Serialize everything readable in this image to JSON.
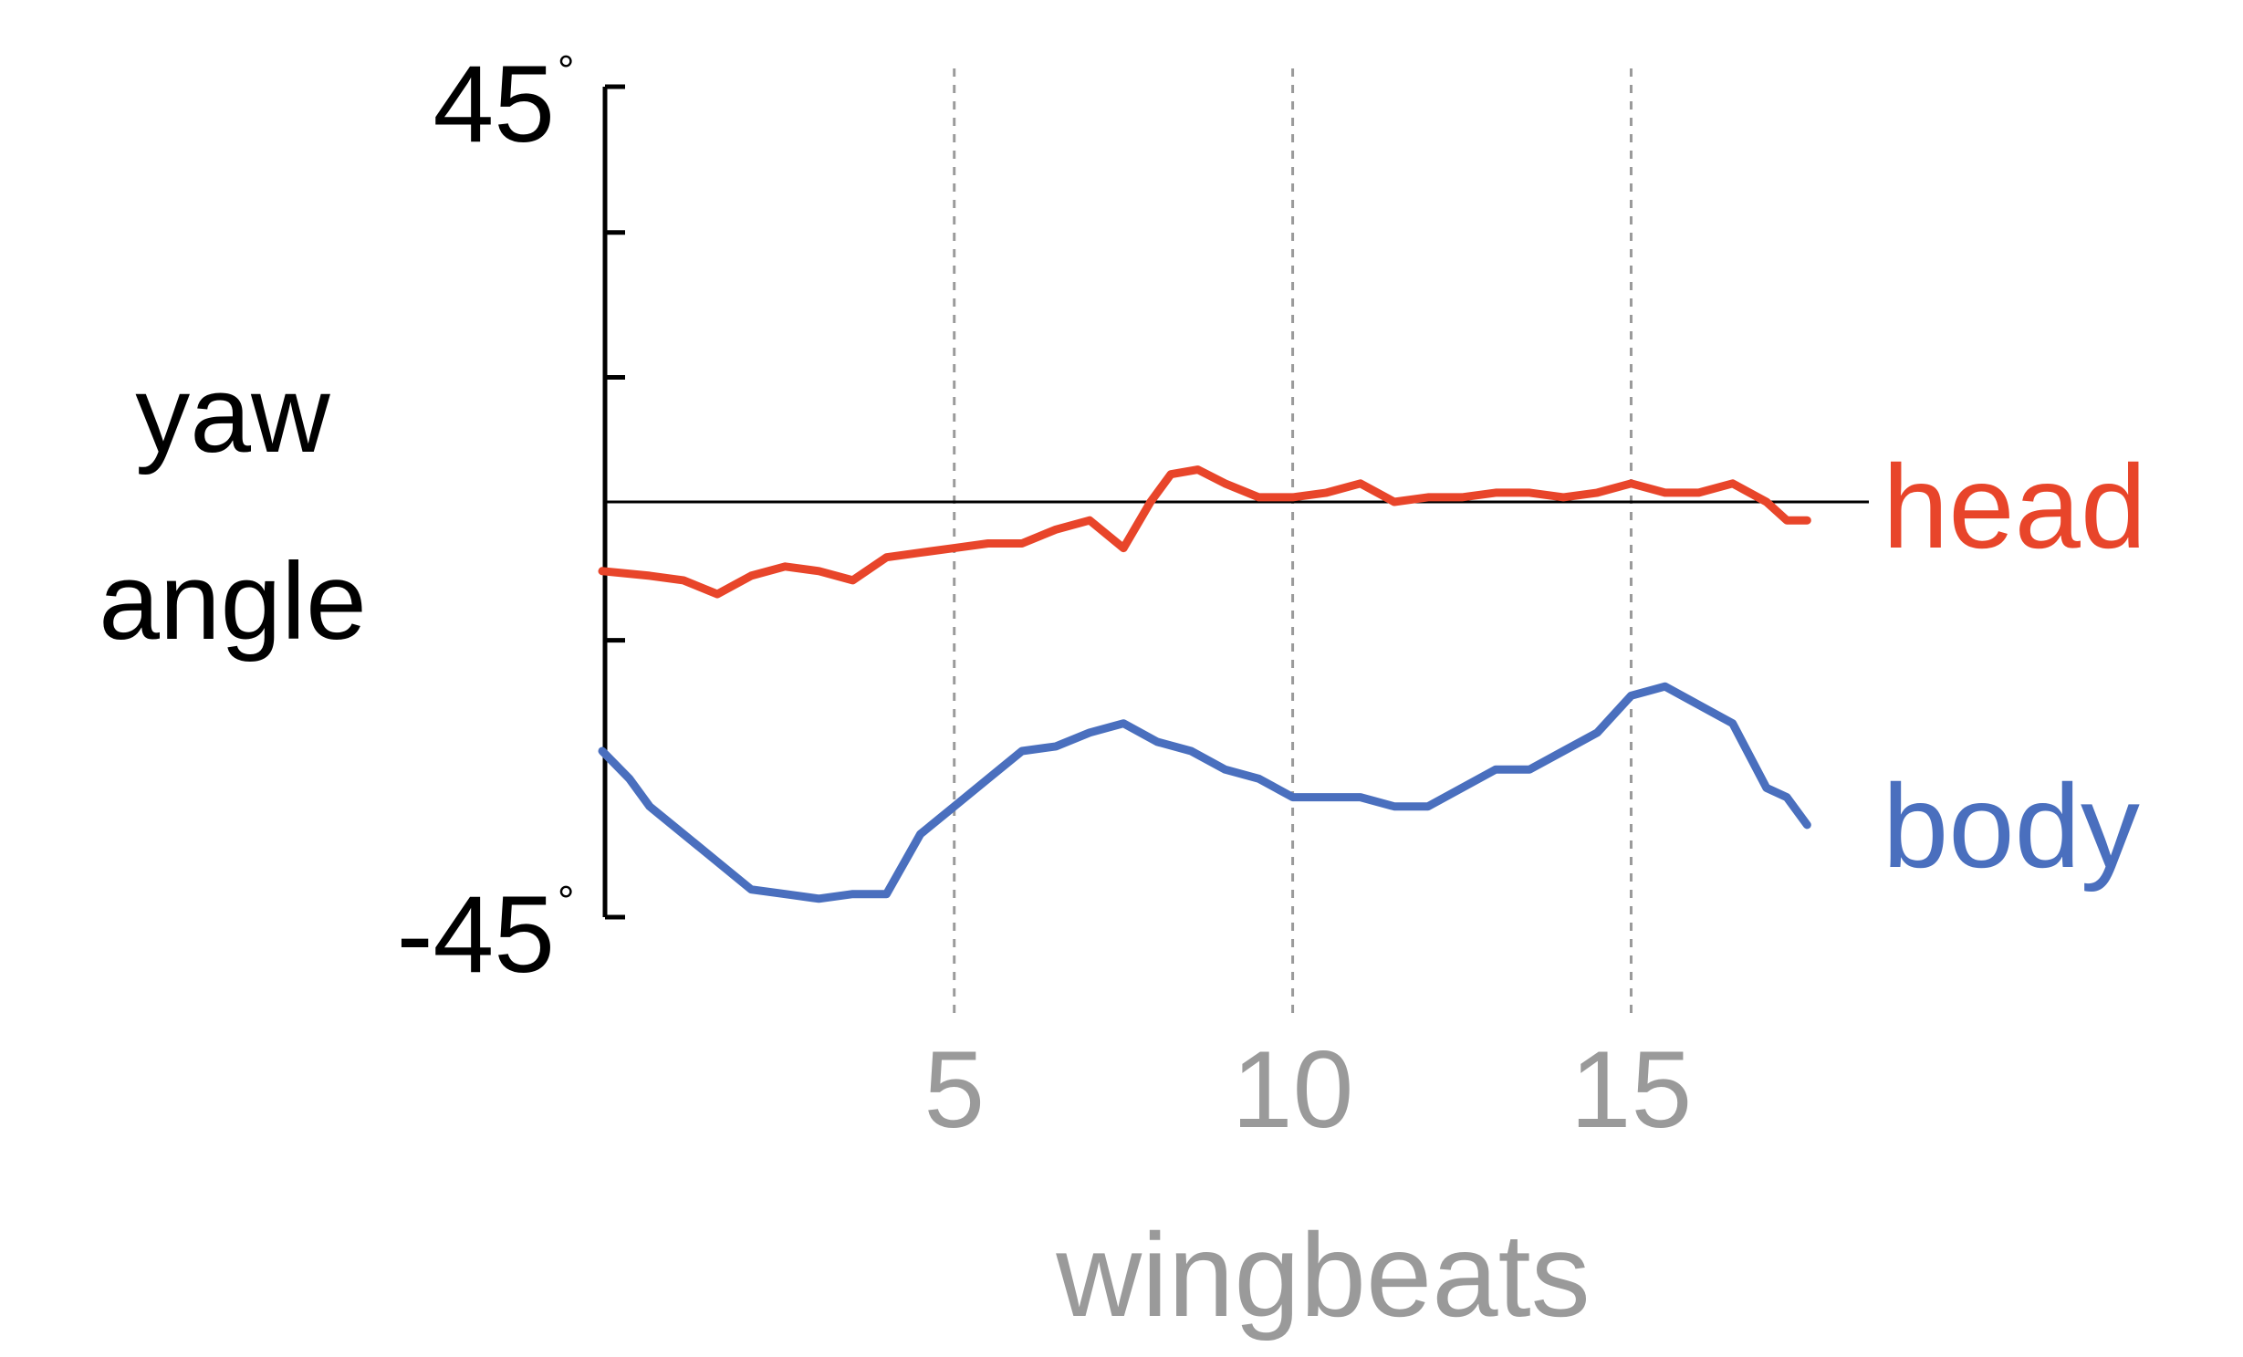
{
  "chart_data": {
    "type": "line",
    "ylabel_lines": [
      "yaw",
      "angle"
    ],
    "xlabel": "wingbeats",
    "ylim": [
      -45,
      45
    ],
    "y_tick_labels": [
      {
        "value": 45,
        "text": "45",
        "suffix": "°"
      },
      {
        "value": -45,
        "text": "-45",
        "suffix": "°"
      }
    ],
    "y_minor_ticks": [
      45,
      29.2,
      13.5,
      -15,
      -45
    ],
    "xlim": [
      -0.2,
      18.0
    ],
    "x_ticks": [
      5,
      10,
      15
    ],
    "x_tick_labels": [
      "5",
      "10",
      "15"
    ],
    "grid": "dashed vertical lines at x ticks",
    "zero_line": true,
    "series": [
      {
        "name": "head",
        "color": "#e8452a",
        "x": [
          -0.2,
          0.5,
          1.0,
          1.5,
          2.0,
          2.5,
          3.0,
          3.5,
          4.0,
          4.5,
          5.0,
          5.5,
          6.0,
          6.5,
          7.0,
          7.5,
          7.9,
          8.2,
          8.6,
          9.0,
          9.5,
          10.0,
          10.5,
          11.0,
          11.5,
          12.0,
          12.5,
          13.0,
          13.5,
          14.0,
          14.5,
          15.0,
          15.5,
          16.0,
          16.5,
          17.0,
          17.3,
          17.6
        ],
        "y": [
          -7.5,
          -8,
          -8.5,
          -10,
          -8,
          -7,
          -7.5,
          -8.5,
          -6,
          -5.5,
          -5,
          -4.5,
          -4.5,
          -3,
          -2,
          -5,
          0,
          3,
          3.5,
          2,
          0.5,
          0.5,
          1,
          2,
          0,
          0.5,
          0.5,
          1,
          1,
          0.5,
          1,
          2,
          1,
          1,
          2,
          0,
          -2,
          -2
        ]
      },
      {
        "name": "body",
        "color": "#4a6fbe",
        "x": [
          -0.2,
          0.2,
          0.5,
          1.0,
          1.5,
          2.0,
          2.5,
          3.0,
          3.5,
          4.0,
          4.5,
          5.0,
          5.5,
          6.0,
          6.5,
          7.0,
          7.5,
          8.0,
          8.5,
          9.0,
          9.5,
          10.0,
          10.5,
          11.0,
          11.5,
          12.0,
          12.5,
          13.0,
          13.5,
          14.0,
          14.5,
          15.0,
          15.5,
          16.0,
          16.5,
          17.0,
          17.3,
          17.6
        ],
        "y": [
          -27,
          -30,
          -33,
          -36,
          -39,
          -42,
          -42.5,
          -43,
          -42.5,
          -42.5,
          -36,
          -33,
          -30,
          -27,
          -26.5,
          -25,
          -24,
          -26,
          -27,
          -29,
          -30,
          -32,
          -32,
          -32,
          -33,
          -33,
          -31,
          -29,
          -29,
          -27,
          -25,
          -21,
          -20,
          -22,
          -24,
          -31,
          -32,
          -35
        ]
      }
    ]
  }
}
